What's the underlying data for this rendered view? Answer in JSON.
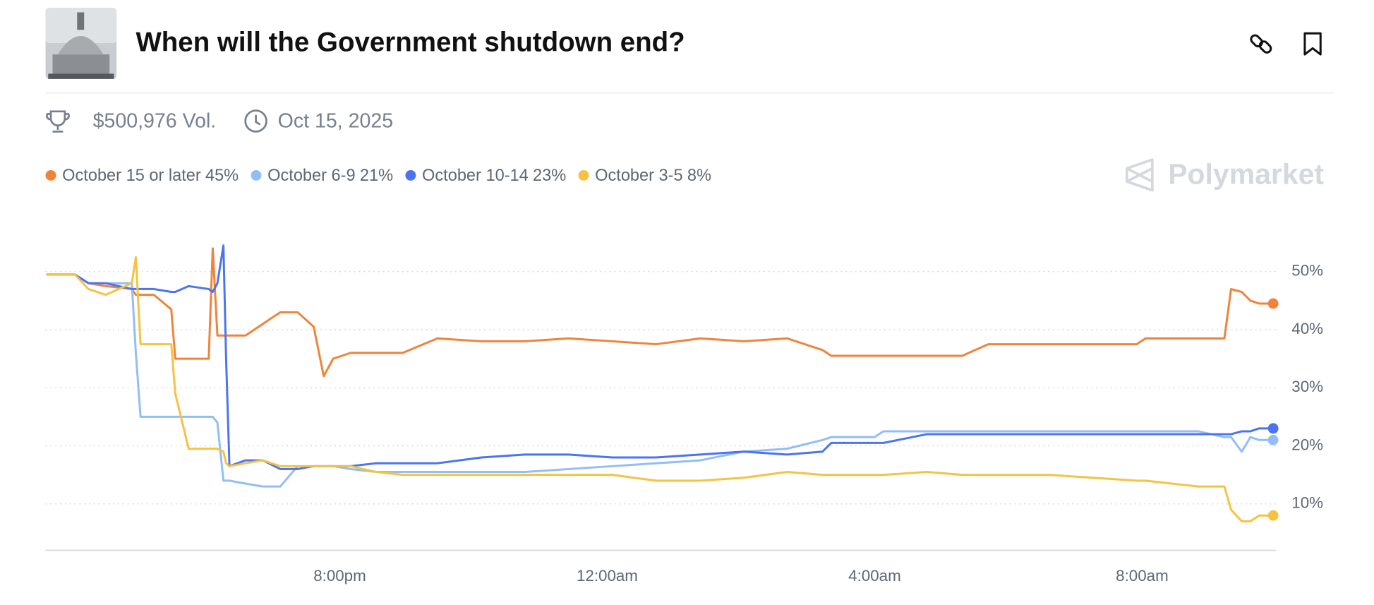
{
  "header": {
    "title": "When will the Government shutdown end?",
    "volume": "$500,976 Vol.",
    "date": "Oct 15, 2025",
    "brand": "Polymarket"
  },
  "chart_data": {
    "type": "line",
    "x": [
      15.61,
      16.04,
      16.24,
      16.5,
      16.89,
      16.95,
      17.02,
      17.22,
      17.48,
      17.54,
      17.74,
      18.04,
      18.1,
      18.17,
      18.26,
      18.3,
      18.35,
      18.59,
      18.85,
      19.11,
      19.37,
      19.61,
      19.76,
      19.9,
      20.16,
      20.55,
      20.94,
      21.46,
      22.12,
      22.77,
      23.42,
      24.08,
      24.73,
      25.39,
      26.04,
      26.69,
      27.22,
      27.35,
      28.0,
      28.13,
      28.78,
      29.31,
      29.7,
      30.61,
      31.92,
      32.05,
      32.84,
      33.23,
      33.33,
      33.49,
      33.62,
      33.75,
      33.96
    ],
    "series": [
      {
        "name": "October 15 or later",
        "current": {
          "value": 45,
          "label": "45%"
        },
        "color": "#f0833a",
        "values": [
          49.5,
          49.5,
          48,
          47.5,
          47,
          46,
          46,
          46,
          43.5,
          35,
          35,
          35,
          54,
          39,
          39,
          39,
          39,
          39,
          41,
          43,
          43,
          40.5,
          32,
          35,
          36,
          36,
          36,
          38.5,
          38,
          38,
          38.5,
          38,
          37.5,
          38.5,
          38,
          38.5,
          36.5,
          35.5,
          35.5,
          35.5,
          35.5,
          35.5,
          37.5,
          37.5,
          37.5,
          38.5,
          38.5,
          38.5,
          47,
          46.5,
          45,
          44.5,
          44.5
        ]
      },
      {
        "name": "October 6-9",
        "current": {
          "value": 21,
          "label": "21%"
        },
        "color": "#93bdf5",
        "values": [
          49.5,
          49.5,
          48,
          48,
          48,
          36,
          25,
          25,
          25,
          25,
          25,
          25,
          25,
          24,
          14,
          14,
          14,
          13.5,
          13,
          13,
          16.5,
          16.5,
          16.5,
          16.5,
          16,
          15.5,
          15.5,
          15.5,
          15.5,
          15.5,
          16,
          16.5,
          17,
          17.5,
          19,
          19.5,
          21,
          21.5,
          21.5,
          22.5,
          22.5,
          22.5,
          22.5,
          22.5,
          22.5,
          22.5,
          22.5,
          21.5,
          21.5,
          19,
          21.5,
          21,
          21
        ]
      },
      {
        "name": "October 10-14",
        "current": {
          "value": 23,
          "label": "23%"
        },
        "color": "#4a74f0",
        "values": [
          49.5,
          49.5,
          48,
          48,
          47,
          47,
          47,
          47,
          46.5,
          46.5,
          47.5,
          47,
          46.5,
          48,
          54.5,
          35,
          16.5,
          17.5,
          17.5,
          16,
          16,
          16.5,
          16.5,
          16.5,
          16.5,
          17,
          17,
          17,
          18,
          18.5,
          18.5,
          18,
          18,
          18.5,
          19,
          18.5,
          19,
          20.5,
          20.5,
          20.5,
          22,
          22,
          22,
          22,
          22,
          22,
          22,
          22,
          22,
          22.5,
          22.5,
          23,
          23
        ]
      },
      {
        "name": "October 3-5",
        "current": {
          "value": 8,
          "label": "8%"
        },
        "color": "#f5c242",
        "values": [
          49.5,
          49.5,
          47,
          46,
          48,
          52.5,
          37.5,
          37.5,
          37.5,
          29,
          19.5,
          19.5,
          19.5,
          19.5,
          19,
          17,
          16.5,
          17,
          17.5,
          16.5,
          16.5,
          16.5,
          16.5,
          16.5,
          16.5,
          15.5,
          15,
          15,
          15,
          15,
          15,
          15,
          14,
          14,
          14.5,
          15.5,
          15,
          15,
          15,
          15,
          15.5,
          15,
          15,
          15,
          14,
          14,
          13,
          13,
          9,
          7,
          7,
          8,
          8
        ]
      }
    ],
    "xlim": [
      15.6,
      34
    ],
    "xticks": [
      {
        "value": 20,
        "label": "8:00pm"
      },
      {
        "value": 24,
        "label": "12:00am"
      },
      {
        "value": 28,
        "label": "4:00am"
      },
      {
        "value": 32,
        "label": "8:00am"
      }
    ],
    "ylim": [
      2,
      56
    ],
    "yticks": [
      {
        "value": 10,
        "label": "10%"
      },
      {
        "value": 20,
        "label": "20%"
      },
      {
        "value": 30,
        "label": "30%"
      },
      {
        "value": 40,
        "label": "40%"
      },
      {
        "value": 50,
        "label": "50%"
      }
    ],
    "grid": true
  }
}
